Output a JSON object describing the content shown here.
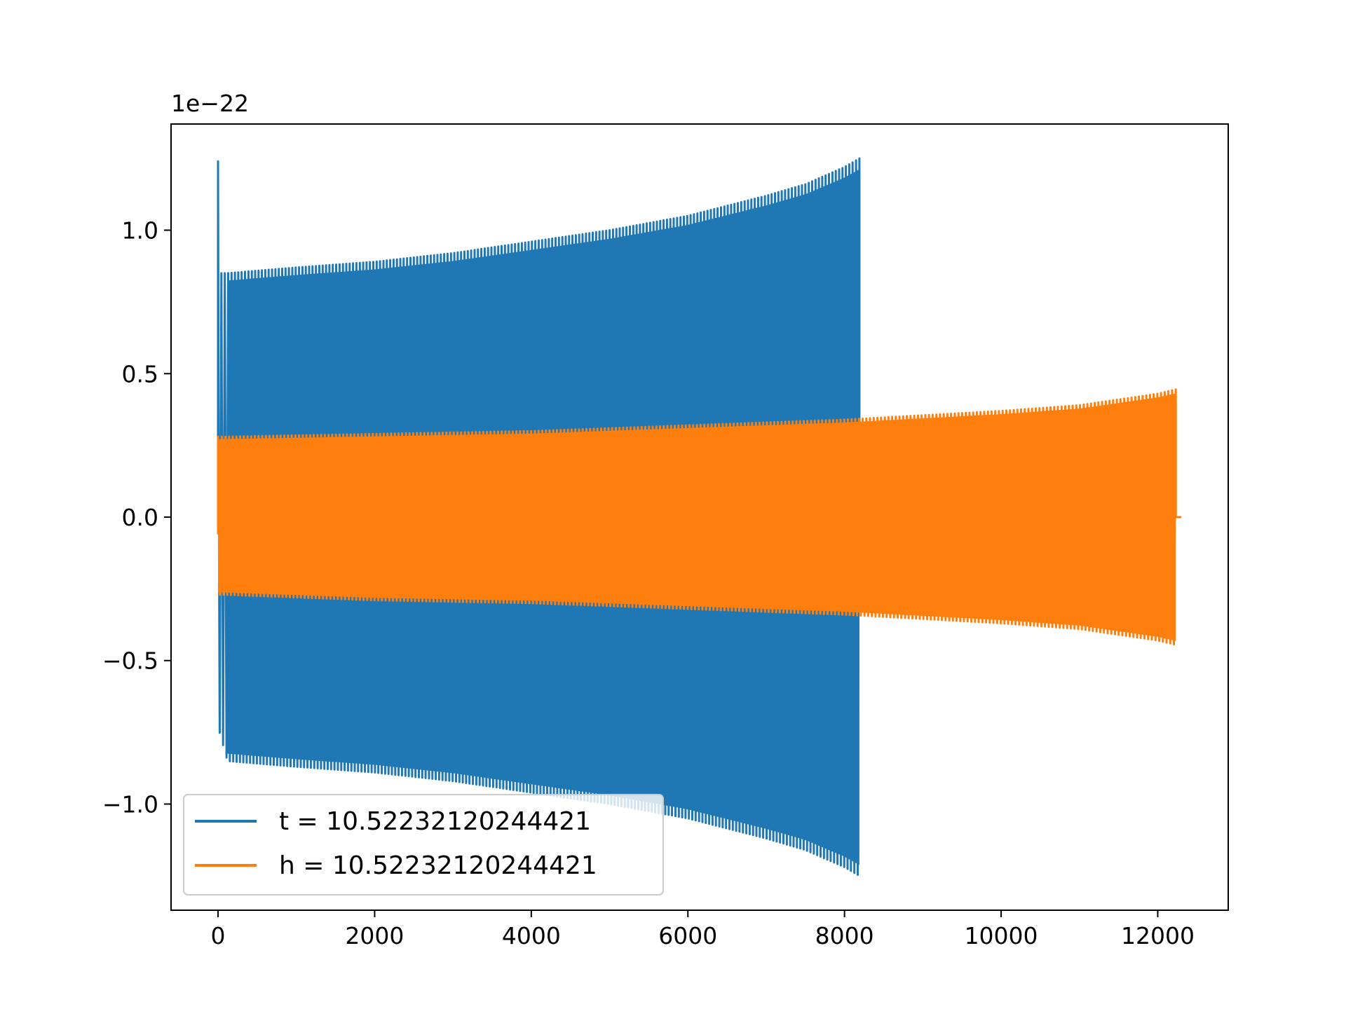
{
  "chart_data": {
    "type": "line",
    "title": "",
    "xlabel": "",
    "ylabel": "",
    "y_offset_label": "1e−22",
    "xlim": [
      -600,
      12900
    ],
    "ylim": [
      -1.37,
      1.37
    ],
    "x_ticks": [
      0,
      2000,
      4000,
      6000,
      8000,
      10000,
      12000
    ],
    "x_tick_labels": [
      "0",
      "2000",
      "4000",
      "6000",
      "8000",
      "10000",
      "12000"
    ],
    "y_ticks": [
      -1.0,
      -0.5,
      0.0,
      0.5,
      1.0
    ],
    "y_tick_labels": [
      "−1.0",
      "−0.5",
      "0.0",
      "0.5",
      "1.0"
    ],
    "grid": false,
    "legend_position": "lower-left",
    "series": [
      {
        "name": "t = 10.52232120244421",
        "color": "#1f77b4",
        "kind": "oscillation",
        "x_start": 0,
        "x_end": 8190,
        "envelope": {
          "x": [
            0,
            120,
            1000,
            2000,
            3000,
            4000,
            5000,
            6000,
            7000,
            7500,
            8000,
            8190
          ],
          "y": [
            1.24,
            0.85,
            0.87,
            0.89,
            0.92,
            0.96,
            1.0,
            1.05,
            1.12,
            1.16,
            1.22,
            1.25
          ]
        },
        "lower_envelope": {
          "x": [
            0,
            20,
            120,
            1000,
            2000,
            3000,
            4000,
            5000,
            6000,
            7000,
            7500,
            8000,
            8190
          ],
          "y": [
            -0.75,
            -0.75,
            -0.85,
            -0.87,
            -0.89,
            -0.92,
            -0.96,
            -1.0,
            -1.05,
            -1.12,
            -1.16,
            -1.22,
            -1.25
          ]
        },
        "cycles": 190
      },
      {
        "name": "h = 10.52232120244421",
        "color": "#ff7f0e",
        "kind": "oscillation",
        "x_start": 0,
        "x_end": 12230,
        "tail_x_end": 12300,
        "envelope": {
          "x": [
            0,
            1000,
            2000,
            3000,
            4000,
            5000,
            6000,
            7000,
            8000,
            9000,
            10000,
            11000,
            12000,
            12230
          ],
          "y": [
            0.28,
            0.285,
            0.29,
            0.295,
            0.3,
            0.31,
            0.32,
            0.33,
            0.34,
            0.355,
            0.37,
            0.39,
            0.43,
            0.445
          ]
        },
        "lower_envelope": {
          "x": [
            0,
            1000,
            2000,
            3000,
            4000,
            5000,
            6000,
            7000,
            8000,
            9000,
            10000,
            11000,
            12000,
            12230
          ],
          "y": [
            -0.27,
            -0.28,
            -0.29,
            -0.295,
            -0.3,
            -0.31,
            -0.32,
            -0.33,
            -0.34,
            -0.355,
            -0.37,
            -0.39,
            -0.43,
            -0.445
          ]
        },
        "cycles": 260
      }
    ]
  }
}
